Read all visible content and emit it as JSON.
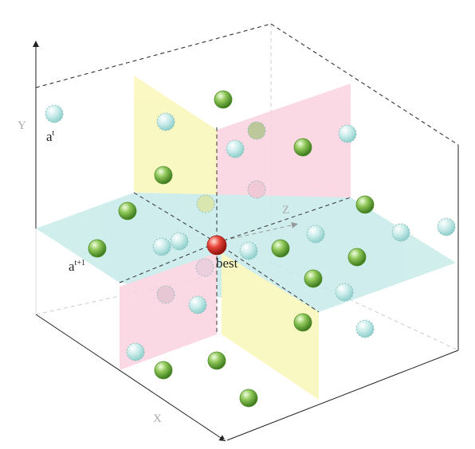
{
  "labels": {
    "y_axis": "Y",
    "x_axis": "X",
    "z_axis": "Z",
    "a_t": {
      "base": "a",
      "sup": "t"
    },
    "a_t1": {
      "base": "a",
      "sup": "t+1"
    },
    "best": "best"
  }
}
